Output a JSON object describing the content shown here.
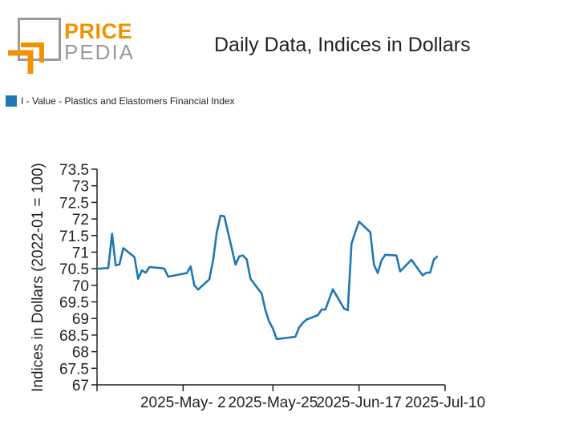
{
  "brand": {
    "word1": "PRICE",
    "word2": "PEDIA",
    "accent": "#f29200",
    "grey": "#9a9a9a"
  },
  "chart_data": {
    "type": "line",
    "title": "Daily Data, Indices in Dollars",
    "ylabel": "Indices in Dollars (2022-01 = 100)",
    "xlabel": "",
    "ylim": [
      67,
      73.5
    ],
    "y_ticks": [
      67,
      67.5,
      68,
      68.5,
      69,
      69.5,
      70,
      70.5,
      71,
      71.5,
      72,
      72.5,
      73,
      73.5
    ],
    "y_tick_labels": [
      "67",
      "67.5",
      "68",
      "68.5",
      "69",
      "69.5",
      "70",
      "70.5",
      "71",
      "71.5",
      "72",
      "72.5",
      "73",
      "73.5"
    ],
    "x_ticks": [
      {
        "date": "2025-04-08",
        "label": ""
      },
      {
        "date": "2025-05-01",
        "label": "2025-May- 2"
      },
      {
        "date": "2025-05-25",
        "label": "2025-May-25"
      },
      {
        "date": "2025-06-17",
        "label": "2025-Jun-17"
      },
      {
        "date": "2025-07-10",
        "label": "2025-Jul-10"
      }
    ],
    "legend_position": "top-left",
    "grid": false,
    "series": [
      {
        "name": "I - Value - Plastics and Elastomers Financial Index",
        "color": "#1f77b4",
        "points": [
          [
            "2025-04-08",
            70.5
          ],
          [
            "2025-04-11",
            70.52
          ],
          [
            "2025-04-12",
            71.55
          ],
          [
            "2025-04-13",
            70.6
          ],
          [
            "2025-04-14",
            70.63
          ],
          [
            "2025-04-15",
            71.12
          ],
          [
            "2025-04-18",
            70.85
          ],
          [
            "2025-04-19",
            70.2
          ],
          [
            "2025-04-20",
            70.45
          ],
          [
            "2025-04-21",
            70.38
          ],
          [
            "2025-04-22",
            70.55
          ],
          [
            "2025-04-25",
            70.52
          ],
          [
            "2025-04-26",
            70.5
          ],
          [
            "2025-04-27",
            70.26
          ],
          [
            "2025-05-02",
            70.37
          ],
          [
            "2025-05-03",
            70.57
          ],
          [
            "2025-05-04",
            70.0
          ],
          [
            "2025-05-05",
            69.87
          ],
          [
            "2025-05-08",
            70.18
          ],
          [
            "2025-05-09",
            70.75
          ],
          [
            "2025-05-10",
            71.6
          ],
          [
            "2025-05-11",
            72.1
          ],
          [
            "2025-05-12",
            72.08
          ],
          [
            "2025-05-15",
            70.62
          ],
          [
            "2025-05-16",
            70.87
          ],
          [
            "2025-05-17",
            70.9
          ],
          [
            "2025-05-18",
            70.78
          ],
          [
            "2025-05-19",
            70.2
          ],
          [
            "2025-05-22",
            69.75
          ],
          [
            "2025-05-23",
            69.25
          ],
          [
            "2025-05-24",
            68.9
          ],
          [
            "2025-05-25",
            68.7
          ],
          [
            "2025-05-26",
            68.38
          ],
          [
            "2025-05-31",
            68.45
          ],
          [
            "2025-06-01",
            68.73
          ],
          [
            "2025-06-02",
            68.87
          ],
          [
            "2025-06-03",
            68.97
          ],
          [
            "2025-06-06",
            69.1
          ],
          [
            "2025-06-07",
            69.27
          ],
          [
            "2025-06-08",
            69.27
          ],
          [
            "2025-06-10",
            69.88
          ],
          [
            "2025-06-13",
            69.3
          ],
          [
            "2025-06-14",
            69.25
          ],
          [
            "2025-06-15",
            71.25
          ],
          [
            "2025-06-16",
            71.6
          ],
          [
            "2025-06-17",
            71.92
          ],
          [
            "2025-06-20",
            71.6
          ],
          [
            "2025-06-21",
            70.62
          ],
          [
            "2025-06-22",
            70.37
          ],
          [
            "2025-06-23",
            70.75
          ],
          [
            "2025-06-24",
            70.92
          ],
          [
            "2025-06-27",
            70.9
          ],
          [
            "2025-06-28",
            70.42
          ],
          [
            "2025-07-01",
            70.77
          ],
          [
            "2025-07-04",
            70.3
          ],
          [
            "2025-07-05",
            70.38
          ],
          [
            "2025-07-06",
            70.38
          ],
          [
            "2025-07-07",
            70.78
          ],
          [
            "2025-07-08",
            70.88
          ]
        ]
      }
    ]
  }
}
